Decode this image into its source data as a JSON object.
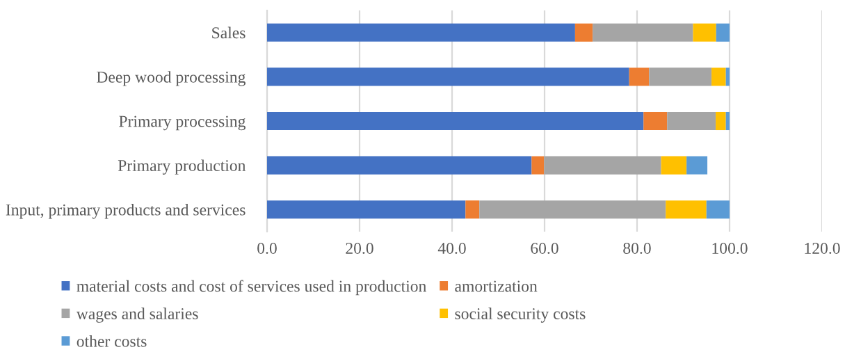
{
  "chart_data": {
    "type": "bar",
    "orientation": "horizontal",
    "stacked": true,
    "categories": [
      "Sales",
      "Deep wood processing",
      "Primary processing",
      "Primary production",
      "Input, primary products and services"
    ],
    "series": [
      {
        "name": "material costs and cost of services used in production",
        "color": "#4472c4",
        "values": [
          66.6,
          78.3,
          81.4,
          57.2,
          42.9
        ]
      },
      {
        "name": "amortization",
        "color": "#ed7d31",
        "values": [
          3.8,
          4.3,
          5.1,
          2.7,
          3.0
        ]
      },
      {
        "name": "wages and salaries",
        "color": "#a5a5a5",
        "values": [
          21.7,
          13.5,
          10.5,
          25.3,
          40.3
        ]
      },
      {
        "name": "social security costs",
        "color": "#ffc000",
        "values": [
          5.0,
          3.1,
          2.2,
          5.5,
          8.8
        ]
      },
      {
        "name": "other costs",
        "color": "#5b9bd5",
        "values": [
          2.9,
          0.8,
          0.8,
          4.5,
          5.0
        ]
      }
    ],
    "xlim": [
      0,
      120
    ],
    "xticks": [
      {
        "value": 0,
        "label": "0.0"
      },
      {
        "value": 20,
        "label": "20.0"
      },
      {
        "value": 40,
        "label": "40.0"
      },
      {
        "value": 60,
        "label": "60.0"
      },
      {
        "value": 80,
        "label": "80.0"
      },
      {
        "value": 100,
        "label": "100.0"
      },
      {
        "value": 120,
        "label": "120.0"
      }
    ],
    "grid": "x",
    "legend": "bottom"
  }
}
